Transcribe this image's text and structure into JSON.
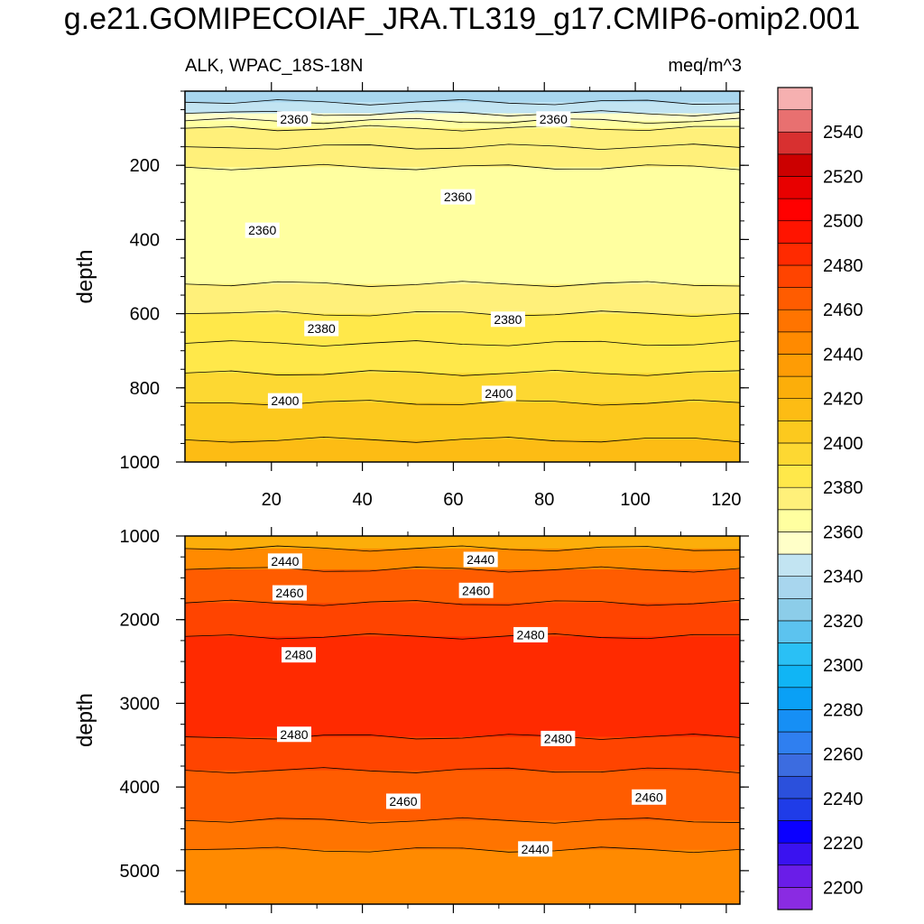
{
  "title": "g.e21.GOMIPECOIAF_JRA.TL319_g17.CMIP6-omip2.001",
  "subtitle_left": "ALK, WPAC_18S-18N",
  "subtitle_right": "meq/m^3",
  "chart_data": [
    {
      "type": "heatmap",
      "name": "upper-panel",
      "xlabel": "",
      "ylabel": "depth",
      "xlim": [
        1,
        123
      ],
      "ylim": [
        0,
        1000
      ],
      "y_inverted": true,
      "x_ticks": [
        20,
        40,
        60,
        80,
        100,
        120
      ],
      "x_tick_labels": [
        "20",
        "40",
        "60",
        "80",
        "100",
        "120"
      ],
      "y_ticks": [
        200,
        400,
        600,
        800,
        1000
      ],
      "y_tick_labels": [
        "200",
        "400",
        "600",
        "800",
        "1000"
      ],
      "depth_layers": [
        {
          "depth": [
            0,
            30
          ],
          "value": 2330
        },
        {
          "depth": [
            30,
            60
          ],
          "value": 2345
        },
        {
          "depth": [
            60,
            80
          ],
          "value": 2355
        },
        {
          "depth": [
            80,
            100
          ],
          "value": 2360
        },
        {
          "depth": [
            100,
            150
          ],
          "value": 2370
        },
        {
          "depth": [
            150,
            205
          ],
          "value": 2375
        },
        {
          "depth": [
            205,
            520
          ],
          "value": 2360
        },
        {
          "depth": [
            520,
            600
          ],
          "value": 2375
        },
        {
          "depth": [
            600,
            680
          ],
          "value": 2380
        },
        {
          "depth": [
            680,
            760
          ],
          "value": 2385
        },
        {
          "depth": [
            760,
            840
          ],
          "value": 2390
        },
        {
          "depth": [
            840,
            940
          ],
          "value": 2400
        },
        {
          "depth": [
            940,
            1000
          ],
          "value": 2410
        }
      ],
      "contour_labels": [
        {
          "text": "2360",
          "x": 25,
          "y": 75
        },
        {
          "text": "2360",
          "x": 82,
          "y": 75
        },
        {
          "text": "2360",
          "x": 61,
          "y": 285
        },
        {
          "text": "2360",
          "x": 18,
          "y": 375
        },
        {
          "text": "2380",
          "x": 31,
          "y": 640
        },
        {
          "text": "2380",
          "x": 72,
          "y": 615
        },
        {
          "text": "2400",
          "x": 23,
          "y": 835
        },
        {
          "text": "2400",
          "x": 70,
          "y": 815
        }
      ]
    },
    {
      "type": "heatmap",
      "name": "lower-panel",
      "xlabel": "",
      "ylabel": "depth",
      "xlim": [
        1,
        123
      ],
      "ylim": [
        1000,
        5400
      ],
      "y_inverted": true,
      "y_ticks": [
        1000,
        2000,
        3000,
        4000,
        5000
      ],
      "y_tick_labels": [
        "1000",
        "2000",
        "3000",
        "4000",
        "5000"
      ],
      "depth_layers": [
        {
          "depth": [
            1000,
            1150
          ],
          "value": 2425
        },
        {
          "depth": [
            1150,
            1400
          ],
          "value": 2440
        },
        {
          "depth": [
            1400,
            1800
          ],
          "value": 2460
        },
        {
          "depth": [
            1800,
            2200
          ],
          "value": 2470
        },
        {
          "depth": [
            2200,
            3400
          ],
          "value": 2480
        },
        {
          "depth": [
            3400,
            3800
          ],
          "value": 2475
        },
        {
          "depth": [
            3800,
            4400
          ],
          "value": 2460
        },
        {
          "depth": [
            4400,
            4750
          ],
          "value": 2450
        },
        {
          "depth": [
            4750,
            5400
          ],
          "value": 2440
        }
      ],
      "contour_labels": [
        {
          "text": "2440",
          "x": 23,
          "y": 1300
        },
        {
          "text": "2440",
          "x": 66,
          "y": 1280
        },
        {
          "text": "2460",
          "x": 24,
          "y": 1680
        },
        {
          "text": "2460",
          "x": 65,
          "y": 1650
        },
        {
          "text": "2480",
          "x": 26,
          "y": 2420
        },
        {
          "text": "2480",
          "x": 77,
          "y": 2180
        },
        {
          "text": "2480",
          "x": 25,
          "y": 3370
        },
        {
          "text": "2480",
          "x": 83,
          "y": 3420
        },
        {
          "text": "2460",
          "x": 49,
          "y": 4170
        },
        {
          "text": "2460",
          "x": 103,
          "y": 4120
        },
        {
          "text": "2440",
          "x": 78,
          "y": 4740
        }
      ]
    }
  ],
  "colorbar": {
    "min": 2190,
    "max": 2560,
    "step": 10,
    "tick_labels": [
      "2200",
      "2220",
      "2240",
      "2260",
      "2280",
      "2300",
      "2320",
      "2340",
      "2360",
      "2380",
      "2400",
      "2420",
      "2440",
      "2460",
      "2480",
      "2500",
      "2520",
      "2540"
    ],
    "colors": [
      "#8a2be2",
      "#6a1de8",
      "#3a12f0",
      "#0b00ff",
      "#1f3ce8",
      "#2b50dc",
      "#3c6ce0",
      "#2f7ff0",
      "#168ff5",
      "#0aa0f6",
      "#10b5f5",
      "#2ac0f5",
      "#5cc3ef",
      "#8ccde9",
      "#a8d6ee",
      "#c2e4f2",
      "#ffffc8",
      "#ffffa0",
      "#fff07a",
      "#ffe84a",
      "#fdd832",
      "#fcc91e",
      "#fdbc14",
      "#fcae0a",
      "#fe9c05",
      "#ff8a00",
      "#ff7400",
      "#ff5c00",
      "#ff4400",
      "#ff2a00",
      "#ff1400",
      "#ff0000",
      "#e80000",
      "#cc0000",
      "#d83030",
      "#e87070",
      "#f6b0b0"
    ]
  }
}
